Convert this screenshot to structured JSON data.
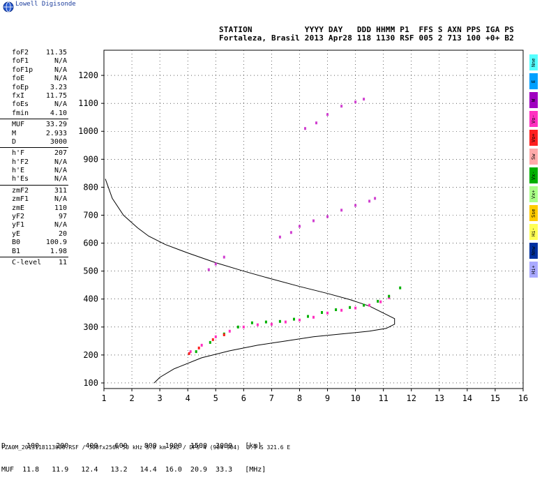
{
  "app": {
    "brand": "Lowell Digisonde"
  },
  "header": {
    "labels": "STATION           YYYY DAY   DDD HHMM P1  FFS S AXN PPS IGA PS",
    "values": "Fortaleza, Brasil 2013 Apr28 118 1130 RSF 005 2 713 100 +0+ B2"
  },
  "params": [
    [
      [
        "foF2",
        "11.35"
      ],
      [
        "foF1",
        "N/A"
      ],
      [
        "foF1p",
        "N/A"
      ],
      [
        "foE",
        "N/A"
      ],
      [
        "foEp",
        "3.23"
      ],
      [
        "fxI",
        "11.75"
      ],
      [
        "foEs",
        "N/A"
      ],
      [
        "fmin",
        "4.10"
      ]
    ],
    [
      [
        "MUF",
        "33.29"
      ],
      [
        "M",
        "2.933"
      ],
      [
        "D",
        "3000"
      ]
    ],
    [
      [
        "h'F",
        "207"
      ],
      [
        "h'F2",
        "N/A"
      ],
      [
        "h'E",
        "N/A"
      ],
      [
        "h'Es",
        "N/A"
      ]
    ],
    [
      [
        "zmF2",
        "311"
      ],
      [
        "zmF1",
        "N/A"
      ],
      [
        "zmE",
        "110"
      ],
      [
        "yF2",
        "97"
      ],
      [
        "yF1",
        "N/A"
      ],
      [
        "yE",
        "20"
      ],
      [
        "B0",
        "100.9"
      ],
      [
        "B1",
        "1.98"
      ]
    ],
    [
      [
        "C-level",
        "11"
      ]
    ]
  ],
  "legend": [
    {
      "label": "Nne",
      "color": "#55ffff"
    },
    {
      "label": "E",
      "color": "#00a0ff"
    },
    {
      "label": "W",
      "color": "#a000c0"
    },
    {
      "label": "Vo-",
      "color": "#ff30c0"
    },
    {
      "label": "Vo+",
      "color": "#ff2020"
    },
    {
      "label": "Sw",
      "color": "#ffaaaa"
    },
    {
      "label": "Vx-",
      "color": "#00b000"
    },
    {
      "label": "Vx+",
      "color": "#aaff88"
    },
    {
      "label": "Sse",
      "color": "#ffcc00"
    },
    {
      "label": "Hi-",
      "color": "#ffff55"
    },
    {
      "label": "Nnw",
      "color": "#0030a0"
    },
    {
      "label": "Hi+",
      "color": "#aaaaff"
    }
  ],
  "bottom": {
    "d_row": "D     100    200    400    600    800  1000  1500  3000   [km]",
    "muf_row": "MUF  11.8   11.9   12.4   13.2   14.4  16.0  20.9  33.3   [MHz]",
    "footer": "FZA0M_2013118113000.RSF / 300fx256h 50 kHz 5.0 km 2x2 / DPS-4 (904-904)  3.9 S 321.6 E"
  },
  "chart_data": {
    "type": "scatter",
    "xlim": [
      1,
      16
    ],
    "ylim": [
      80,
      1290
    ],
    "x_ticks": [
      1,
      2,
      3,
      4,
      5,
      6,
      7,
      8,
      9,
      10,
      11,
      12,
      13,
      14,
      15,
      16
    ],
    "y_ticks": [
      100,
      200,
      300,
      400,
      500,
      600,
      700,
      800,
      900,
      1000,
      1100,
      1200
    ],
    "grid": true,
    "legend_position": "right",
    "profile": [
      [
        1.05,
        830
      ],
      [
        1.3,
        760
      ],
      [
        1.7,
        700
      ],
      [
        2.2,
        655
      ],
      [
        2.6,
        625
      ],
      [
        3.2,
        595
      ],
      [
        4,
        565
      ],
      [
        5,
        530
      ],
      [
        6,
        500
      ],
      [
        7,
        472
      ],
      [
        8,
        445
      ],
      [
        9,
        420
      ],
      [
        9.8,
        398
      ],
      [
        10.5,
        375
      ],
      [
        11,
        350
      ],
      [
        11.4,
        330
      ],
      [
        11.4,
        310
      ],
      [
        11.1,
        295
      ],
      [
        10.5,
        285
      ],
      [
        9.5,
        275
      ],
      [
        8.5,
        265
      ],
      [
        7.5,
        250
      ],
      [
        6.5,
        235
      ],
      [
        5.5,
        215
      ],
      [
        4.5,
        190
      ],
      [
        3.5,
        150
      ],
      [
        3,
        120
      ],
      [
        2.8,
        100
      ]
    ],
    "traces": [
      {
        "name": "Vo-",
        "color": "#ff30c0",
        "points": [
          [
            4.1,
            212
          ],
          [
            4.5,
            235
          ],
          [
            5,
            265
          ],
          [
            5.5,
            285
          ],
          [
            6,
            300
          ],
          [
            6.5,
            308
          ],
          [
            7,
            310
          ],
          [
            7.5,
            318
          ],
          [
            8,
            325
          ],
          [
            8.5,
            335
          ],
          [
            9,
            350
          ],
          [
            9.5,
            360
          ],
          [
            10,
            368
          ],
          [
            10.5,
            378
          ],
          [
            10.9,
            390
          ],
          [
            11.2,
            405
          ]
        ]
      },
      {
        "name": "Vx-",
        "color": "#00b000",
        "points": [
          [
            4.3,
            212
          ],
          [
            4.8,
            245
          ],
          [
            5.3,
            275
          ],
          [
            5.8,
            300
          ],
          [
            6.3,
            315
          ],
          [
            6.8,
            318
          ],
          [
            7.3,
            320
          ],
          [
            7.8,
            328
          ],
          [
            8.3,
            338
          ],
          [
            8.8,
            352
          ],
          [
            9.3,
            362
          ],
          [
            9.8,
            370
          ],
          [
            10.3,
            378
          ],
          [
            10.8,
            392
          ],
          [
            11.2,
            410
          ],
          [
            11.6,
            440
          ]
        ]
      },
      {
        "name": "Vo+",
        "color": "#ff2020",
        "points": [
          [
            4.05,
            205
          ],
          [
            4.4,
            225
          ],
          [
            4.9,
            255
          ],
          [
            5.3,
            272
          ]
        ]
      },
      {
        "name": "Vo- (2)",
        "color": "#d040d0",
        "points": [
          [
            4.75,
            505
          ],
          [
            5.0,
            525
          ],
          [
            5.3,
            550
          ],
          [
            7.3,
            622
          ],
          [
            7.7,
            638
          ],
          [
            8.0,
            660
          ],
          [
            8.5,
            680
          ],
          [
            9.0,
            695
          ],
          [
            9.5,
            718
          ],
          [
            10.0,
            735
          ],
          [
            10.5,
            750
          ],
          [
            10.7,
            760
          ]
        ]
      },
      {
        "name": "Vo- (3)",
        "color": "#d040d0",
        "points": [
          [
            8.2,
            1010
          ],
          [
            8.6,
            1030
          ],
          [
            9.0,
            1060
          ],
          [
            9.5,
            1090
          ],
          [
            10.0,
            1105
          ],
          [
            10.3,
            1115
          ]
        ]
      }
    ]
  }
}
